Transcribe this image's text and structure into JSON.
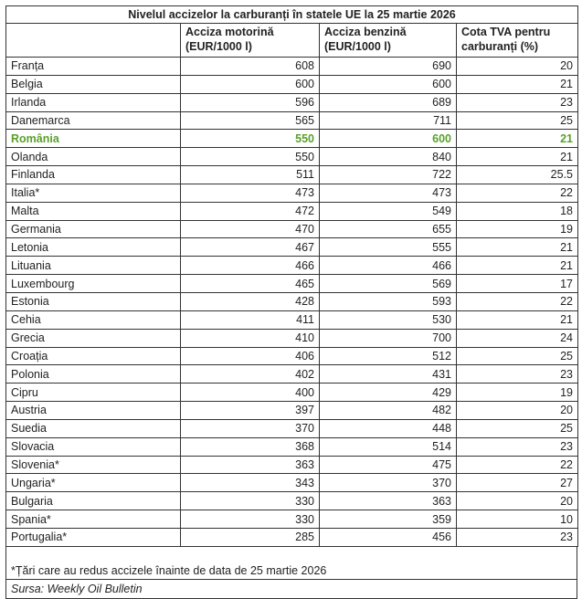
{
  "title": "Nivelul accizelor la carburanți în statele UE la 25 martie 2026",
  "headers": [
    "",
    "Acciza motorină (EUR/1000 l)",
    "Acciza benzină (EUR/1000 l)",
    "Cota TVA pentru carburanți (%)"
  ],
  "highlight_color": "#5aa02c",
  "rows": [
    [
      "Franța",
      "608",
      "690",
      "20"
    ],
    [
      "Belgia",
      "600",
      "600",
      "21"
    ],
    [
      "Irlanda",
      "596",
      "689",
      "23"
    ],
    [
      "Danemarca",
      "565",
      "711",
      "25"
    ],
    [
      "România",
      "550",
      "600",
      "21"
    ],
    [
      "Olanda",
      "550",
      "840",
      "21"
    ],
    [
      "Finlanda",
      "511",
      "722",
      "25.5"
    ],
    [
      "Italia*",
      "473",
      "473",
      "22"
    ],
    [
      "Malta",
      "472",
      "549",
      "18"
    ],
    [
      "Germania",
      "470",
      "655",
      "19"
    ],
    [
      "Letonia",
      "467",
      "555",
      "21"
    ],
    [
      "Lituania",
      "466",
      "466",
      "21"
    ],
    [
      "Luxembourg",
      "465",
      "569",
      "17"
    ],
    [
      "Estonia",
      "428",
      "593",
      "22"
    ],
    [
      "Cehia",
      "411",
      "530",
      "21"
    ],
    [
      "Grecia",
      "410",
      "700",
      "24"
    ],
    [
      "Croația",
      "406",
      "512",
      "25"
    ],
    [
      "Polonia",
      "402",
      "431",
      "23"
    ],
    [
      "Cipru",
      "400",
      "429",
      "19"
    ],
    [
      "Austria",
      "397",
      "482",
      "20"
    ],
    [
      "Suedia",
      "370",
      "448",
      "25"
    ],
    [
      "Slovacia",
      "368",
      "514",
      "23"
    ],
    [
      "Slovenia*",
      "363",
      "475",
      "22"
    ],
    [
      "Ungaria*",
      "343",
      "370",
      "27"
    ],
    [
      "Bulgaria",
      "330",
      "363",
      "20"
    ],
    [
      "Spania*",
      "330",
      "359",
      "10"
    ],
    [
      "Portugalia*",
      "285",
      "456",
      "23"
    ]
  ],
  "highlighted_row": 4,
  "footnote": "*Țări care au redus accizele înainte de data de 25 martie 2026",
  "source": "Sursa: Weekly Oil Bulletin"
}
